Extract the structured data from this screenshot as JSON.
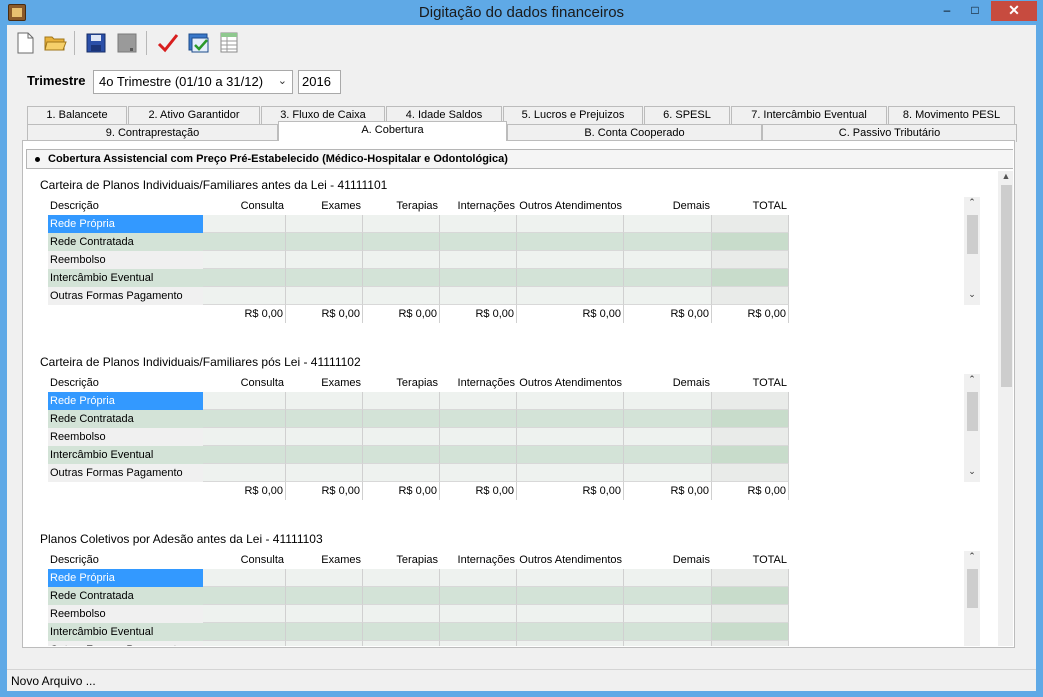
{
  "window": {
    "title": "Digitação do dados financeiros",
    "controls": {
      "minimize": "–",
      "maximize": "□",
      "close": "✕"
    }
  },
  "toolbar": {
    "buttons": [
      "new-file-icon",
      "open-folder-icon",
      "save-icon",
      "save-disabled-icon",
      "check-icon",
      "validate-icon",
      "grid-icon"
    ]
  },
  "filter": {
    "label": "Trimestre",
    "quarter": "4o Trimestre (01/10 a 31/12)",
    "year": "2016"
  },
  "tabs_row1": [
    "1. Balancete",
    "2. Ativo Garantidor",
    "3. Fluxo de Caixa",
    "4. Idade Saldos",
    "5. Lucros e Prejuizos",
    "6. SPESL",
    "7. Intercâmbio Eventual",
    "8. Movimento PESL"
  ],
  "tabs_row2": [
    "9. Contraprestação",
    "A. Cobertura",
    "B. Conta Cooperado",
    "C. Passivo Tributário"
  ],
  "active_tab": "A. Cobertura",
  "section": {
    "title": "Cobertura Assistencial com Preço Pré-Estabelecido (Médico-Hospitalar e Odontológica)"
  },
  "columns": [
    "Descrição",
    "Consulta Médica",
    "Exames",
    "Terapias",
    "Internações",
    "Outros Atendimentos",
    "Demais Despesas",
    "TOTAL"
  ],
  "rows": [
    "Rede Própria",
    "Rede Contratada",
    "Reembolso",
    "Intercâmbio Eventual",
    "Outras Formas Pagamento"
  ],
  "grids": [
    {
      "title": "Carteira de Planos Individuais/Familiares antes da Lei - 41111101",
      "totals": [
        "R$ 0,00",
        "R$ 0,00",
        "R$ 0,00",
        "R$ 0,00",
        "R$ 0,00",
        "R$ 0,00",
        "R$ 0,00"
      ]
    },
    {
      "title": "Carteira de Planos Individuais/Familiares pós Lei - 41111102",
      "totals": [
        "R$ 0,00",
        "R$ 0,00",
        "R$ 0,00",
        "R$ 0,00",
        "R$ 0,00",
        "R$ 0,00",
        "R$ 0,00"
      ]
    },
    {
      "title": "Planos Coletivos por Adesão antes da Lei - 41111103",
      "totals": []
    }
  ],
  "colors": {
    "selected_row": "#3399ff",
    "green_row": "#d3e3d7",
    "total_col_green": "#c8dccb",
    "light_row": "#eef2ef",
    "total_col_light": "#e9ebe9"
  },
  "status": {
    "text": "Novo Arquivo ..."
  }
}
